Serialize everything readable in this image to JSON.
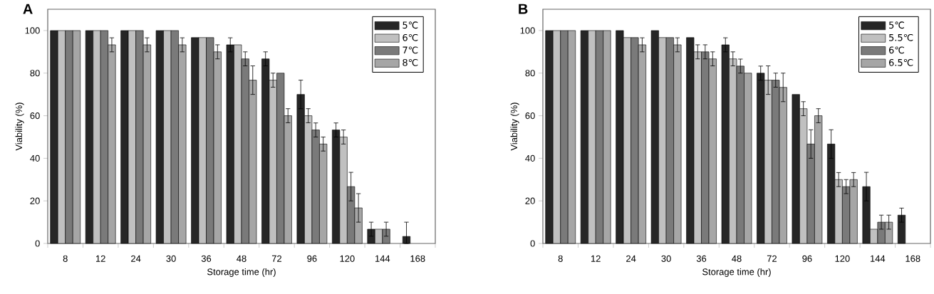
{
  "chart_data": [
    {
      "type": "bar",
      "title": "**A**",
      "xlabel": "Storage time (hr)",
      "ylabel": "Viability (%)",
      "categories": [
        "8",
        "12",
        "24",
        "30",
        "36",
        "48",
        "72",
        "96",
        "120",
        "144",
        "168"
      ],
      "ylim": [
        0,
        110
      ],
      "yticks": [
        0,
        20,
        40,
        60,
        80,
        100
      ],
      "legend": "top right",
      "series": [
        {
          "name": "5℃",
          "color": "#262626",
          "values": [
            100,
            100,
            100,
            100,
            96.7,
            93.3,
            86.7,
            70,
            53.3,
            6.7,
            3.3
          ],
          "errors": [
            null,
            null,
            null,
            null,
            null,
            3.3,
            3.3,
            6.7,
            3.3,
            3.3,
            [
              0,
              10
            ]
          ]
        },
        {
          "name": "6℃",
          "color": "#c0c0c0",
          "values": [
            100,
            100,
            100,
            100,
            96.7,
            93.3,
            76.7,
            60,
            50,
            6.7,
            null
          ],
          "errors": [
            null,
            null,
            null,
            null,
            null,
            null,
            3.3,
            3.3,
            3.3,
            null,
            null
          ]
        },
        {
          "name": "7℃",
          "color": "#7a7a7a",
          "values": [
            100,
            100,
            100,
            100,
            96.7,
            86.7,
            80,
            53.3,
            26.7,
            6.7,
            null
          ],
          "errors": [
            null,
            null,
            null,
            null,
            null,
            3.3,
            null,
            3.3,
            6.7,
            3.3,
            null
          ]
        },
        {
          "name": "8℃",
          "color": "#a6a6a6",
          "values": [
            100,
            93.3,
            93.3,
            93.3,
            90,
            76.7,
            60,
            46.7,
            16.7,
            null,
            null
          ],
          "errors": [
            null,
            3.3,
            3.3,
            3.3,
            3.3,
            6.7,
            3.3,
            3.3,
            6.7,
            null,
            null
          ]
        }
      ]
    },
    {
      "type": "bar",
      "title": "**B**",
      "xlabel": "Storage time (hr)",
      "ylabel": "Viability (%)",
      "categories": [
        "8",
        "12",
        "24",
        "30",
        "36",
        "48",
        "72",
        "96",
        "120",
        "144",
        "168"
      ],
      "ylim": [
        0,
        110
      ],
      "yticks": [
        0,
        20,
        40,
        60,
        80,
        100
      ],
      "legend": "top right",
      "series": [
        {
          "name": "5℃",
          "color": "#262626",
          "values": [
            100,
            100,
            100,
            100,
            96.7,
            93.3,
            80,
            70,
            46.7,
            26.7,
            13.3
          ],
          "errors": [
            null,
            null,
            null,
            null,
            null,
            3.3,
            3.3,
            null,
            6.7,
            6.7,
            3.3
          ]
        },
        {
          "name": "5.5℃",
          "color": "#c0c0c0",
          "values": [
            100,
            100,
            96.7,
            96.7,
            90,
            86.7,
            76.7,
            63.3,
            30,
            6.7,
            null
          ],
          "errors": [
            null,
            null,
            null,
            null,
            3.3,
            3.3,
            6.7,
            3.3,
            3.3,
            null,
            null
          ]
        },
        {
          "name": "6℃",
          "color": "#7a7a7a",
          "values": [
            100,
            100,
            96.7,
            96.7,
            90,
            83.3,
            76.7,
            46.7,
            26.7,
            10,
            null
          ],
          "errors": [
            null,
            null,
            null,
            null,
            3.3,
            3.3,
            3.3,
            6.7,
            3.3,
            3.3,
            null
          ]
        },
        {
          "name": "6.5℃",
          "color": "#a6a6a6",
          "values": [
            100,
            100,
            93.3,
            93.3,
            86.7,
            80,
            73.3,
            60,
            30,
            10,
            null
          ],
          "errors": [
            null,
            null,
            3.3,
            3.3,
            3.3,
            null,
            6.7,
            3.3,
            3.3,
            3.3,
            null
          ]
        }
      ]
    }
  ]
}
